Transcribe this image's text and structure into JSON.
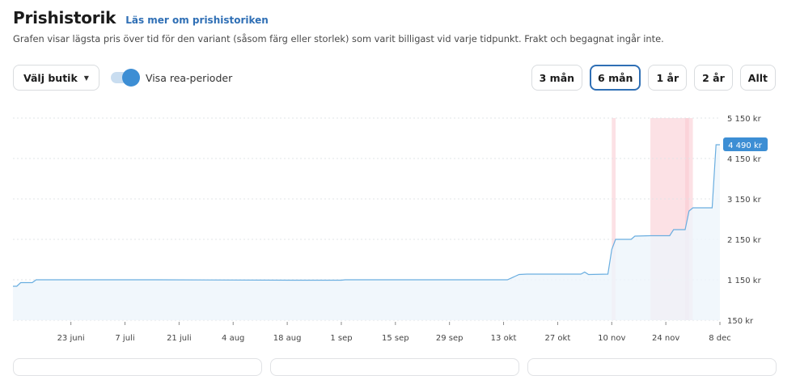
{
  "header": {
    "title": "Prishistorik",
    "link": "Läs mer om prishistoriken",
    "subtitle": "Grafen visar lägsta pris över tid för den variant (såsom färg eller storlek) som varit billigast vid varje tidpunkt. Frakt och begagnat ingår inte."
  },
  "controls": {
    "store_select": "Välj butik",
    "sale_toggle_label": "Visa rea-perioder",
    "sale_toggle_on": true
  },
  "ranges": [
    {
      "label": "3 mån",
      "active": false
    },
    {
      "label": "6 mån",
      "active": true
    },
    {
      "label": "1 år",
      "active": false
    },
    {
      "label": "2 år",
      "active": false
    },
    {
      "label": "Allt",
      "active": false
    }
  ],
  "colors": {
    "line": "#6aaee0",
    "area": "#eef5fb",
    "sale": "#f9c9cf",
    "badge": "#3d8ed4",
    "grid": "#e2e4e7"
  },
  "chart_data": {
    "type": "line",
    "x_start": "2023-06-08",
    "x_end": "2023-12-08",
    "x_ticks": [
      {
        "date": "2023-06-23",
        "label": "23 juni"
      },
      {
        "date": "2023-07-07",
        "label": "7 juli"
      },
      {
        "date": "2023-07-21",
        "label": "21 juli"
      },
      {
        "date": "2023-08-04",
        "label": "4 aug"
      },
      {
        "date": "2023-08-18",
        "label": "18 aug"
      },
      {
        "date": "2023-09-01",
        "label": "1 sep"
      },
      {
        "date": "2023-09-15",
        "label": "15 sep"
      },
      {
        "date": "2023-09-29",
        "label": "29 sep"
      },
      {
        "date": "2023-10-13",
        "label": "13 okt"
      },
      {
        "date": "2023-10-27",
        "label": "27 okt"
      },
      {
        "date": "2023-11-10",
        "label": "10 nov"
      },
      {
        "date": "2023-11-24",
        "label": "24 nov"
      },
      {
        "date": "2023-12-08",
        "label": "8 dec"
      }
    ],
    "y_ticks": [
      {
        "value": 150,
        "label": "150 kr"
      },
      {
        "value": 1150,
        "label": "1 150 kr"
      },
      {
        "value": 2150,
        "label": "2 150 kr"
      },
      {
        "value": 3150,
        "label": "3 150 kr"
      },
      {
        "value": 4150,
        "label": "4 150 kr"
      },
      {
        "value": 5150,
        "label": "5 150 kr"
      }
    ],
    "ylim": [
      150,
      5150
    ],
    "current_label": "4 490 kr",
    "current_value": 4490,
    "sale_periods": [
      {
        "start": "2023-11-10",
        "end": "2023-11-11"
      },
      {
        "start": "2023-11-20",
        "end": "2023-12-01"
      },
      {
        "start": "2023-11-29",
        "end": "2023-11-30"
      }
    ],
    "series": [
      {
        "points": [
          [
            "2023-06-08",
            990
          ],
          [
            "2023-06-09",
            990
          ],
          [
            "2023-06-10",
            1080
          ],
          [
            "2023-06-13",
            1080
          ],
          [
            "2023-06-14",
            1150
          ],
          [
            "2023-07-15",
            1150
          ],
          [
            "2023-08-20",
            1140
          ],
          [
            "2023-09-01",
            1140
          ],
          [
            "2023-09-02",
            1150
          ],
          [
            "2023-10-14",
            1150
          ],
          [
            "2023-10-17",
            1280
          ],
          [
            "2023-10-19",
            1290
          ],
          [
            "2023-11-02",
            1290
          ],
          [
            "2023-11-03",
            1340
          ],
          [
            "2023-11-04",
            1280
          ],
          [
            "2023-11-09",
            1290
          ],
          [
            "2023-11-10",
            1900
          ],
          [
            "2023-11-11",
            2150
          ],
          [
            "2023-11-15",
            2150
          ],
          [
            "2023-11-16",
            2230
          ],
          [
            "2023-11-20",
            2240
          ],
          [
            "2023-11-25",
            2240
          ],
          [
            "2023-11-26",
            2390
          ],
          [
            "2023-11-29",
            2390
          ],
          [
            "2023-11-30",
            2850
          ],
          [
            "2023-12-01",
            2930
          ],
          [
            "2023-12-06",
            2930
          ],
          [
            "2023-12-07",
            4490
          ],
          [
            "2023-12-08",
            4490
          ]
        ]
      }
    ]
  }
}
